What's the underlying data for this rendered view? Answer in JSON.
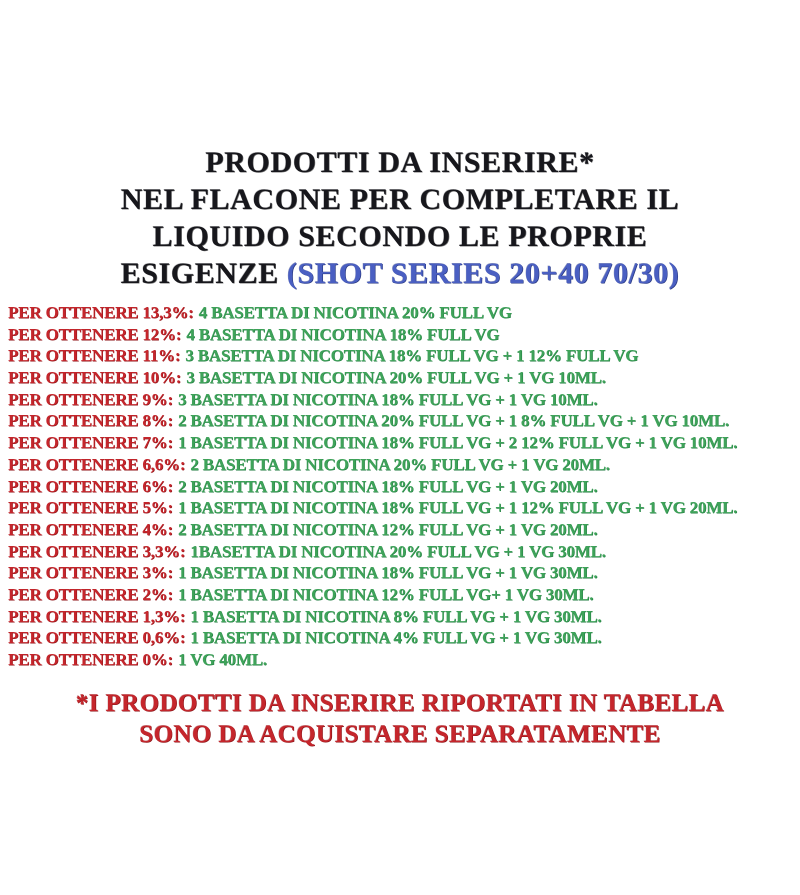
{
  "page": {
    "background": "#ffffff"
  },
  "title": {
    "lines": [
      "PRODOTTI DA INSERIRE*",
      "NEL FLACONE PER COMPLETARE IL",
      "LIQUIDO SECONDO LE PROPRIE"
    ],
    "last_line_black": "ESIGENZE ",
    "last_line_blue": "(SHOT SERIES 20+40 70/30)",
    "text_color": "#17171c",
    "accent_color": "#4a5fc2"
  },
  "recipes": [
    {
      "label": "PER OTTENERE 13,3%:",
      "value": "4 BASETTA DI NICOTINA 20% FULL VG"
    },
    {
      "label": "PER OTTENERE 12%:",
      "value": "4 BASETTA DI NICOTINA 18% FULL VG"
    },
    {
      "label": "PER OTTENERE 11%:",
      "value": "3 BASETTA DI NICOTINA 18% FULL VG + 1 12% FULL VG"
    },
    {
      "label": "PER OTTENERE 10%:",
      "value": "3 BASETTA DI NICOTINA 20% FULL VG + 1 VG 10ML."
    },
    {
      "label": "PER OTTENERE 9%:",
      "value": "3 BASETTA DI NICOTINA 18% FULL VG + 1 VG 10ML."
    },
    {
      "label": "PER OTTENERE 8%:",
      "value": "2 BASETTA DI NICOTINA 20% FULL VG + 1 8% FULL VG + 1 VG 10ML."
    },
    {
      "label": "PER OTTENERE 7%:",
      "value": "1 BASETTA DI NICOTINA 18% FULL VG + 2 12% FULL VG + 1 VG 10ML."
    },
    {
      "label": "PER OTTENERE 6,6%:",
      "value": "2 BASETTA DI NICOTINA 20% FULL VG + 1 VG 20ML."
    },
    {
      "label": "PER OTTENERE 6%:",
      "value": "2 BASETTA DI NICOTINA 18% FULL VG + 1 VG 20ML."
    },
    {
      "label": "PER OTTENERE 5%:",
      "value": "1 BASETTA DI NICOTINA 18% FULL VG + 1 12% FULL VG + 1 VG 20ML."
    },
    {
      "label": "PER OTTENERE 4%:",
      "value": "2 BASETTA DI NICOTINA 12% FULL VG + 1 VG 20ML."
    },
    {
      "label": "PER OTTENERE 3,3%:",
      "value": "1BASETTA DI NICOTINA 20% FULL VG + 1 VG 30ML."
    },
    {
      "label": "PER OTTENERE 3%:",
      "value": "1 BASETTA DI NICOTINA 18% FULL VG + 1 VG 30ML."
    },
    {
      "label": "PER OTTENERE 2%:",
      "value": "1 BASETTA DI NICOTINA 12% FULL VG+ 1 VG 30ML."
    },
    {
      "label": "PER OTTENERE 1,3%:",
      "value": "1 BASETTA DI NICOTINA 8% FULL VG + 1 VG 30ML."
    },
    {
      "label": "PER OTTENERE 0,6%:",
      "value": "1 BASETTA DI NICOTINA 4% FULL VG + 1 VG 30ML."
    },
    {
      "label": "PER OTTENERE 0%:",
      "value": "1 VG 40ML."
    }
  ],
  "footnote": {
    "lines": [
      "*I PRODOTTI DA INSERIRE RIPORTATI IN TABELLA",
      "SONO DA ACQUISTARE SEPARATAMENTE"
    ],
    "color": "#c5262c"
  },
  "colors": {
    "label_red": "#c5262c",
    "value_green": "#3fa35a",
    "title_blue": "#4a5fc2",
    "title_black": "#17171c"
  }
}
